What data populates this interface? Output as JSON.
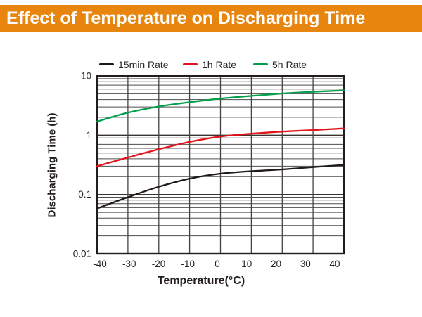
{
  "banner": {
    "title": "Effect of Temperature on Discharging Time",
    "bg_color": "#e8850e",
    "text_color": "#ffffff"
  },
  "chart_data": {
    "type": "line",
    "title": "Effect of Temperature on Discharging Time",
    "xlabel": "Temperature(°C)",
    "ylabel": "Discharging Time (h)",
    "x_scale": "linear",
    "y_scale": "log",
    "xlim": [
      -40,
      40
    ],
    "ylim": [
      0.01,
      10
    ],
    "x_ticks": [
      -40,
      -30,
      -20,
      -10,
      0,
      10,
      20,
      30,
      40
    ],
    "x_tick_labels": [
      "-40",
      "-30",
      "-20",
      "-10",
      "0",
      "10",
      "20",
      "30",
      "40"
    ],
    "y_ticks": [
      10,
      1,
      0.1,
      0.01
    ],
    "y_tick_labels": [
      "10",
      "1",
      "0.1",
      "0.01"
    ],
    "grid": "vertical lines every 10°C; horizontal log minor lines (2-9 per decade)",
    "legend_position": "top",
    "x": [
      -40,
      -30,
      -20,
      -10,
      0,
      10,
      20,
      30,
      40
    ],
    "series": [
      {
        "name": "15min Rate",
        "color": "#1f1a17",
        "values": [
          0.058,
          0.09,
          0.135,
          0.185,
          0.225,
          0.247,
          0.265,
          0.29,
          0.315
        ]
      },
      {
        "name": "1h Rate",
        "color": "#e3131b",
        "values": [
          0.3,
          0.42,
          0.58,
          0.77,
          0.95,
          1.06,
          1.15,
          1.22,
          1.3
        ]
      },
      {
        "name": "5h Rate",
        "color": "#00a04a",
        "values": [
          1.7,
          2.4,
          3.05,
          3.6,
          4.15,
          4.6,
          5.05,
          5.4,
          5.7
        ]
      }
    ],
    "colors": {
      "grid_minor": "#4e4e4e",
      "grid_major": "#3a3430",
      "border": "#221d1b",
      "tick_text": "#2a2523"
    }
  }
}
